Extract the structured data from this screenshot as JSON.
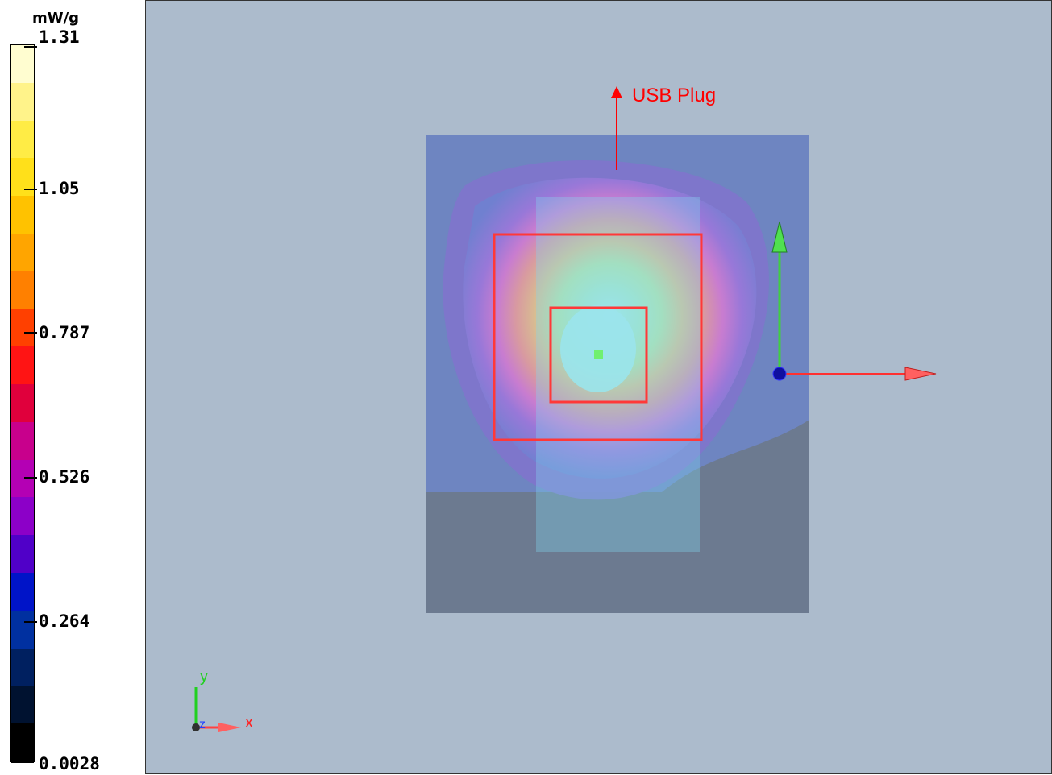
{
  "legend": {
    "unit": "mW/g",
    "ticks": [
      "1.31",
      "1.05",
      "0.787",
      "0.526",
      "0.264",
      "0.0028"
    ],
    "colors": [
      "#fffdd0",
      "#fff38a",
      "#ffec45",
      "#ffe01a",
      "#ffc200",
      "#ffa500",
      "#ff8000",
      "#ff4000",
      "#ff1414",
      "#e0003c",
      "#c8008c",
      "#b400b4",
      "#8c00c8",
      "#5000c8",
      "#0014c8",
      "#0030a0",
      "#002060",
      "#001230",
      "#000000"
    ]
  },
  "viewport": {
    "annotation": "USB Plug",
    "axis_triad": {
      "x": "x",
      "y": "y",
      "z": "z"
    }
  }
}
